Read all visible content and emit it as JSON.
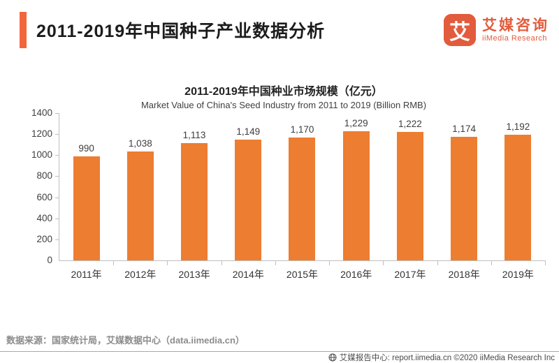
{
  "header": {
    "title": "2011-2019年中国种子产业数据分析",
    "logo": {
      "mark": "艾",
      "name_cn": "艾媒咨询",
      "name_en": "iiMedia Research"
    }
  },
  "chart_data": {
    "type": "bar",
    "title": "2011-2019年中国种业市场规模（亿元）",
    "subtitle": "Market Value of China's Seed Industry from 2011 to 2019 (Billion RMB)",
    "categories": [
      "2011年",
      "2012年",
      "2013年",
      "2014年",
      "2015年",
      "2016年",
      "2017年",
      "2018年",
      "2019年"
    ],
    "values": [
      990,
      1038,
      1113,
      1149,
      1170,
      1229,
      1222,
      1174,
      1192
    ],
    "value_labels": [
      "990",
      "1,038",
      "1,113",
      "1,149",
      "1,170",
      "1,229",
      "1,222",
      "1,174",
      "1,192"
    ],
    "xlabel": "",
    "ylabel": "",
    "ylim": [
      0,
      1400
    ],
    "yticks": [
      0,
      200,
      400,
      600,
      800,
      1000,
      1200,
      1400
    ],
    "grid": false,
    "legend_position": "none",
    "bar_color": "#ED7D31"
  },
  "source_note": "数据来源：国家统计局，艾媒数据中心（data.iimedia.cn）",
  "footer": {
    "text": "艾媒报告中心: report.iimedia.cn ©2020 iiMedia Research Inc"
  },
  "colors": {
    "accent_bar": "#F2663B",
    "bar": "#ED7D31",
    "logo": "#E25B3C",
    "axis": "#BFBFBF"
  }
}
